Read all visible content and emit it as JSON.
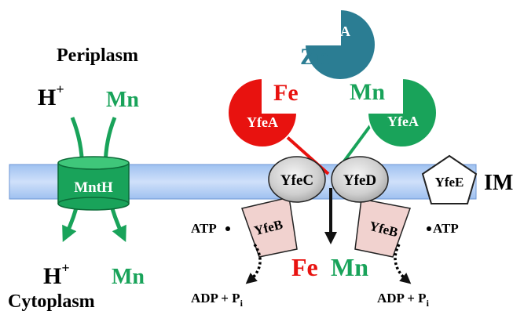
{
  "labels": {
    "periplasm": "Periplasm",
    "cytoplasm": "Cytoplasm",
    "membrane": "IM",
    "h_top": "H",
    "h_bottom": "H",
    "h_charge": "+",
    "mn_top": "Mn",
    "mn_bottom": "Mn",
    "fe_free": "Fe",
    "mn_free": "Mn",
    "zn": "Zn",
    "fe_out": "Fe",
    "mn_out": "Mn",
    "atp_left": "ATP",
    "atp_right": "ATP",
    "adp_left": "ADP + P",
    "adp_right": "ADP + P",
    "sub_i": "i"
  },
  "proteins": {
    "mnth": "MntH",
    "yfea_zn": "YfeA",
    "yfea_fe": "YfeA",
    "yfea_mn": "YfeA",
    "yfec": "YfeC",
    "yfed": "YfeD",
    "yfee": "YfeE",
    "yfeb_left": "YfeB",
    "yfeb_right": "YfeB"
  },
  "colors": {
    "green": "#19a35a",
    "red": "#e8120f",
    "teal": "#2b7d93",
    "membrane": "#a9c8f2",
    "yfeb_fill": "#f1d2cf"
  }
}
